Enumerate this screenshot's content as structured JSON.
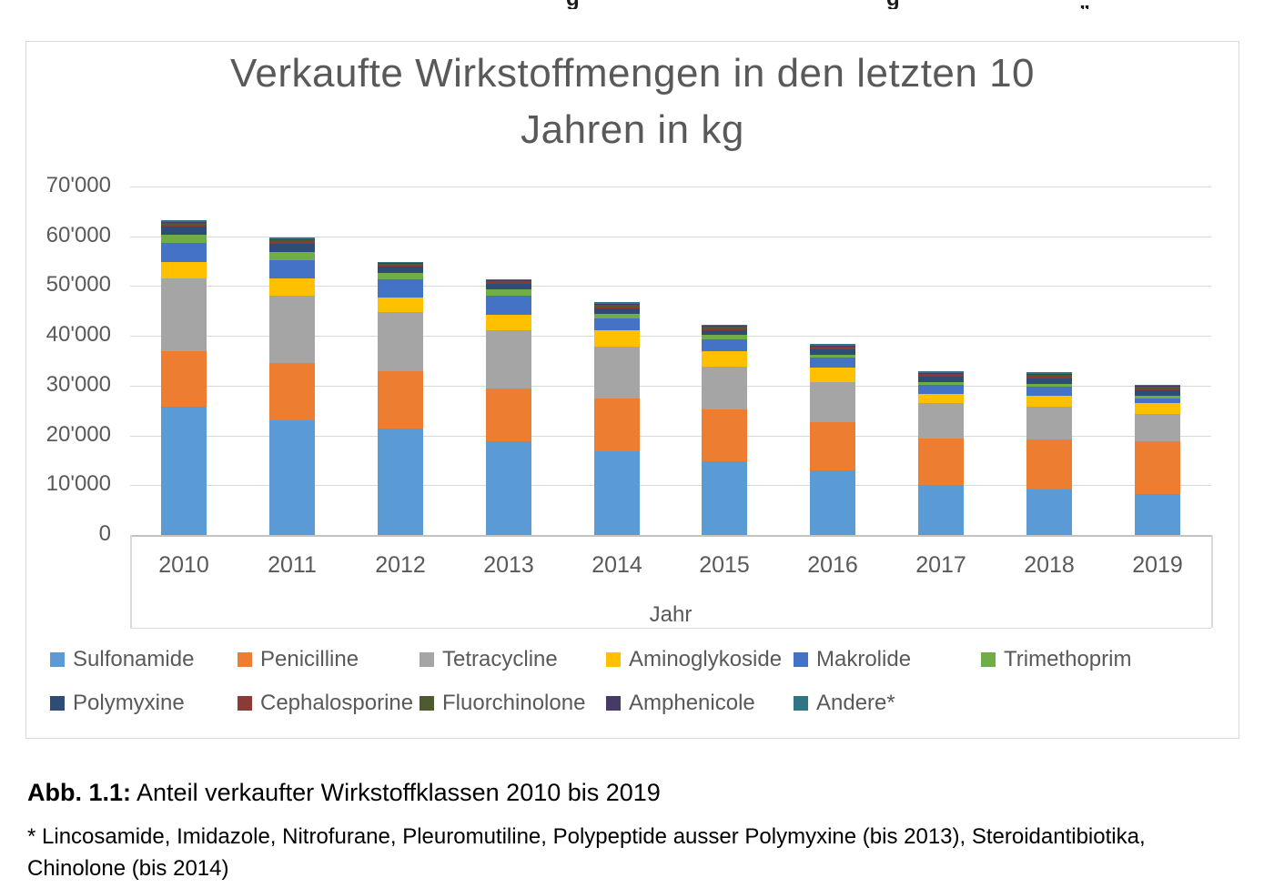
{
  "top_cutoff": {
    "fragments": [
      "g",
      "g",
      "„"
    ]
  },
  "chart": {
    "title_line1": "Verkaufte Wirkstoffmengen in den letzten 10",
    "title_line2": "Jahren in kg",
    "axis_x_title": "Jahr"
  },
  "chart_data": {
    "type": "bar",
    "stacked": true,
    "title": "Verkaufte Wirkstoffmengen in den letzten 10 Jahren in kg",
    "xlabel": "Jahr",
    "ylabel": "",
    "unit": "kg",
    "ylim": [
      0,
      70000
    ],
    "ytick_step": 10000,
    "ytick_labels": [
      "0",
      "10'000",
      "20'000",
      "30'000",
      "40'000",
      "50'000",
      "60'000",
      "70'000"
    ],
    "grid": true,
    "legend_position": "bottom",
    "categories": [
      "2010",
      "2011",
      "2012",
      "2013",
      "2014",
      "2015",
      "2016",
      "2017",
      "2018",
      "2019"
    ],
    "series": [
      {
        "name": "Sulfonamide",
        "color": "#5B9BD5",
        "values": [
          25700,
          23100,
          21400,
          18800,
          16800,
          14800,
          13000,
          10100,
          9100,
          8200
        ]
      },
      {
        "name": "Penicilline",
        "color": "#ED7D31",
        "values": [
          11200,
          11400,
          11500,
          10600,
          10600,
          10400,
          9700,
          9300,
          10100,
          10600
        ]
      },
      {
        "name": "Tetracycline",
        "color": "#A5A5A5",
        "values": [
          14700,
          13600,
          11900,
          11700,
          10400,
          8600,
          8000,
          7100,
          6600,
          5500
        ]
      },
      {
        "name": "Aminoglykoside",
        "color": "#FFC000",
        "values": [
          3200,
          3400,
          2900,
          3100,
          3300,
          3100,
          2900,
          1800,
          2200,
          2200
        ]
      },
      {
        "name": "Makrolide",
        "color": "#4472C4",
        "values": [
          3900,
          3700,
          3700,
          3900,
          2400,
          2400,
          2000,
          1900,
          1800,
          900
        ]
      },
      {
        "name": "Trimethoprim",
        "color": "#70AD47",
        "values": [
          1700,
          1700,
          1250,
          1300,
          900,
          900,
          600,
          500,
          500,
          600
        ]
      },
      {
        "name": "Polymyxine",
        "color": "#2E4D76",
        "values": [
          1500,
          1600,
          1200,
          1100,
          1200,
          1000,
          1100,
          1100,
          1200,
          1100
        ]
      },
      {
        "name": "Cephalosporine",
        "color": "#8B3A36",
        "values": [
          400,
          400,
          350,
          300,
          350,
          300,
          350,
          350,
          400,
          350
        ]
      },
      {
        "name": "Fluorchinolone",
        "color": "#4E5B2F",
        "values": [
          300,
          300,
          250,
          250,
          350,
          300,
          300,
          300,
          300,
          300
        ]
      },
      {
        "name": "Amphenicole",
        "color": "#473A66",
        "values": [
          250,
          250,
          200,
          150,
          200,
          150,
          150,
          150,
          200,
          150
        ]
      },
      {
        "name": "Andere*",
        "color": "#2E7586",
        "values": [
          350,
          350,
          150,
          200,
          300,
          250,
          300,
          300,
          300,
          300
        ]
      }
    ],
    "totals": [
      63200,
      59800,
      54800,
      51400,
      46800,
      42200,
      38400,
      32900,
      32700,
      30200
    ]
  },
  "caption": {
    "label": "Abb. 1.1:",
    "text": " Anteil verkaufter Wirkstoffklassen 2010 bis 2019"
  },
  "footnote": {
    "text": "* Lincosamide, Imidazole, Nitrofurane, Pleuromutiline, Polypeptide ausser Polymyxine (bis 2013), Steroidantibiotika, Chinolone (bis 2014)"
  }
}
